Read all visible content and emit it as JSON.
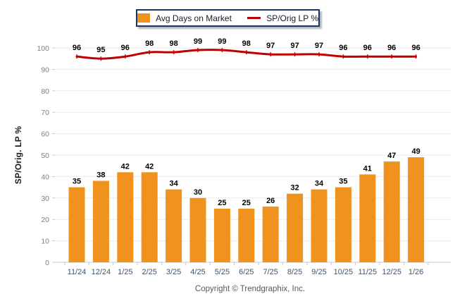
{
  "legend": {
    "bar_label": "Avg Days on Market",
    "line_label": "SP/Orig LP %"
  },
  "y_axis": {
    "title": "SP/Orig. LP %"
  },
  "footer": {
    "copyright": "Copyright © Trendgraphix, Inc."
  },
  "colors": {
    "bar": "#F0921E",
    "line": "#C00000",
    "grid": "#EBEBEB",
    "axis": "#C9C9C9",
    "y_tick_label": "#808080",
    "x_tick_label": "#44546A",
    "value_label": "#000000",
    "legend_border": "#17375E"
  },
  "chart_data": {
    "type": "bar+line",
    "title": "",
    "xlabel": "",
    "ylabel": "SP/Orig. LP %",
    "ylim": [
      0,
      100
    ],
    "y_step": 10,
    "grid": true,
    "legend_position": "top-center",
    "categories": [
      "11/24",
      "12/24",
      "1/25",
      "2/25",
      "3/25",
      "4/25",
      "5/25",
      "6/25",
      "7/25",
      "8/25",
      "9/25",
      "10/25",
      "11/25",
      "12/25",
      "1/26"
    ],
    "series": [
      {
        "name": "Avg Days on Market",
        "type": "bar",
        "values": [
          35,
          38,
          42,
          42,
          34,
          30,
          25,
          25,
          26,
          32,
          34,
          35,
          41,
          47,
          49
        ]
      },
      {
        "name": "SP/Orig LP %",
        "type": "line",
        "values": [
          96,
          95,
          96,
          98,
          98,
          99,
          99,
          98,
          97,
          97,
          97,
          96,
          96,
          96,
          96
        ]
      }
    ]
  }
}
